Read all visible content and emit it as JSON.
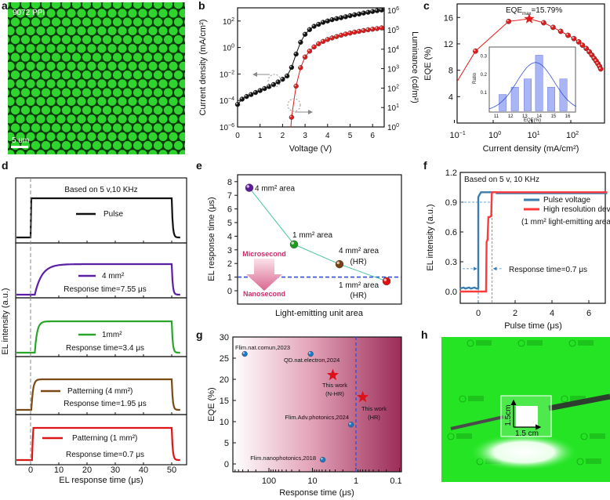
{
  "panel_labels": {
    "a": "a",
    "b": "b",
    "c": "c",
    "d": "d",
    "e": "e",
    "f": "f",
    "g": "g",
    "h": "h"
  },
  "panel_a": {
    "ppi_label": "9072 PPI",
    "scale_label": "5 um"
  },
  "panel_h": {
    "width_label": "1.5 cm",
    "height_label": "1.5cm"
  },
  "chart_data": [
    {
      "panel": "b",
      "type": "line",
      "xlabel": "Voltage (V)",
      "ylabel": "Current density (mA/cm²)",
      "y2label": "Luminance (cd/m²)",
      "xlim": [
        0,
        6.5
      ],
      "xticks": [
        0,
        1,
        2,
        3,
        4,
        5,
        6
      ],
      "ylim_log10": [
        -6,
        3
      ],
      "yticks_log10": [
        -6,
        -4,
        -2,
        0,
        2
      ],
      "y2lim_log10": [
        0,
        6.1
      ],
      "y2ticks_log10": [
        0,
        1,
        2,
        3,
        4,
        5,
        6
      ],
      "series": [
        {
          "name": "Current density",
          "axis": "left",
          "color": "#111111",
          "x": [
            0,
            0.2,
            0.4,
            0.6,
            0.8,
            1.0,
            1.2,
            1.4,
            1.6,
            1.8,
            2.0,
            2.2,
            2.4,
            2.6,
            2.8,
            3.0,
            3.2,
            3.4,
            3.6,
            3.8,
            4.0,
            4.2,
            4.4,
            4.6,
            4.8,
            5.0,
            5.2,
            5.4,
            5.6,
            5.8,
            6.0,
            6.2,
            6.4
          ],
          "log10_y": [
            -4.3,
            -3.9,
            -3.7,
            -3.55,
            -3.4,
            -3.25,
            -3.1,
            -2.95,
            -2.8,
            -2.6,
            -2.4,
            -2.15,
            -1.5,
            -0.5,
            0.4,
            1.0,
            1.35,
            1.6,
            1.75,
            1.9,
            2.0,
            2.1,
            2.18,
            2.25,
            2.32,
            2.4,
            2.47,
            2.53,
            2.6,
            2.66,
            2.72,
            2.78,
            2.83
          ]
        },
        {
          "name": "Luminance",
          "axis": "right",
          "color": "#e01b1b",
          "x": [
            2.4,
            2.6,
            2.8,
            3.0,
            3.2,
            3.4,
            3.6,
            3.8,
            4.0,
            4.2,
            4.4,
            4.6,
            4.8,
            5.0,
            5.2,
            5.4,
            5.6,
            5.8,
            6.0,
            6.2,
            6.4
          ],
          "log10_y": [
            0.5,
            2.1,
            3.05,
            3.6,
            3.9,
            4.12,
            4.28,
            4.4,
            4.5,
            4.58,
            4.65,
            4.72,
            4.78,
            4.83,
            4.88,
            4.92,
            4.96,
            5.0,
            5.03,
            5.06,
            5.1
          ]
        }
      ]
    },
    {
      "panel": "c",
      "type": "line",
      "xlabel": "Current density (mA/cm²)",
      "ylabel": "EQE (%)",
      "xlim_log10": [
        -1,
        2.8
      ],
      "xticks_log10": [
        -1,
        0,
        1,
        2
      ],
      "ylim": [
        0,
        18
      ],
      "yticks": [
        4,
        8,
        12,
        16
      ],
      "annotation": {
        "text": "EQE",
        "sub": "max",
        "value": "=15.79%",
        "x": 8.5,
        "y": 15.79
      },
      "series": [
        {
          "name": "EQE",
          "color": "#e01b1b",
          "x": [
            0.35,
            2.5,
            8.5,
            20,
            35,
            55,
            85,
            120,
            160,
            200,
            250,
            300,
            350,
            400,
            450,
            500,
            550,
            590
          ],
          "y": [
            10.9,
            15.4,
            15.79,
            15.2,
            14.5,
            13.9,
            13.3,
            12.8,
            12.3,
            11.8,
            11.3,
            10.8,
            10.3,
            9.8,
            9.4,
            9.0,
            8.6,
            8.2
          ],
          "line_start": {
            "x": 0.1,
            "y": 6.3
          }
        }
      ],
      "inset": {
        "type": "bar",
        "xlabel": "EQE(%)",
        "ylabel": "Ratio",
        "xticks": [
          11,
          12,
          13,
          14,
          15,
          16
        ],
        "yticks": [
          0.1,
          0.2,
          0.3
        ],
        "bins": [
          11.45,
          12.3,
          13.2,
          14.0,
          14.85,
          15.7
        ],
        "values": [
          0.09,
          0.13,
          0.175,
          0.305,
          0.13,
          0.175
        ],
        "fit": {
          "type": "gaussian",
          "mean": 13.75,
          "sd": 1.3,
          "peak": 0.265,
          "color": "#3552d8"
        },
        "bar_color": "#a9b5f4"
      }
    },
    {
      "panel": "d",
      "type": "line",
      "xlabel": "EL response time (μs)",
      "ylabel": "EL intensity (a.u.)",
      "xlim": [
        -5,
        55
      ],
      "xticks": [
        0,
        10,
        20,
        30,
        40,
        50
      ],
      "note": "Based on 5 v,10 KHz",
      "traces": [
        {
          "label": "Pulse",
          "response": "",
          "color": "#111111",
          "onset_us": 0,
          "tau_us": 0.02
        },
        {
          "label": "4 mm²",
          "response": "Response time=7.55 μs",
          "color": "#5b1fa6",
          "onset_us": 1.5,
          "tau_us": 2.5
        },
        {
          "label": "1mm²",
          "response": "Response time=3.4 μs",
          "color": "#2aa52a",
          "onset_us": 1.5,
          "tau_us": 0.8
        },
        {
          "label": "Patterning (4 mm²)",
          "response": "Response time=1.95 μs",
          "color": "#7a4a14",
          "onset_us": 0.3,
          "tau_us": 0.55
        },
        {
          "label": "Patterning (1 mm²)",
          "response": "Response time=0.7 μs",
          "color": "#dd1515",
          "onset_us": 0.7,
          "tau_us": 0.05
        }
      ]
    },
    {
      "panel": "e",
      "type": "scatter",
      "xlabel": "Light-emitting unit area",
      "ylabel": "EL response time (μs)",
      "ylim": [
        -1,
        8.5
      ],
      "yticks": [
        0,
        1,
        2,
        3,
        4,
        5,
        6,
        7,
        8
      ],
      "threshold": 1,
      "upper_label": "Microsecond",
      "lower_label": "Nanosecond",
      "points": [
        {
          "label": "4 mm² area",
          "sub": "",
          "value": 7.55,
          "color": "#5a1a9a"
        },
        {
          "label": "1 mm² area",
          "sub": "",
          "value": 3.4,
          "color": "#1f9a1f"
        },
        {
          "label": "4 mm² area",
          "sub": "(HR)",
          "value": 1.95,
          "color": "#7a4214"
        },
        {
          "label": "1 mm² area",
          "sub": "(HR)",
          "value": 0.7,
          "color": "#e01010"
        }
      ]
    },
    {
      "panel": "f",
      "type": "line",
      "xlabel": "Pulse time (μs)",
      "ylabel": "EL intensity (a.u.)",
      "xlim": [
        -1,
        7
      ],
      "xticks": [
        0,
        2,
        4,
        6
      ],
      "ylim": [
        -0.13,
        1.2
      ],
      "yticks": [
        0.0,
        0.3,
        0.6,
        0.9,
        1.2
      ],
      "note": "Based on 5 v, 10 KHz",
      "legend_extra": "(1 mm² light-emitting area)",
      "annotation": "Response time=0.7 μs",
      "series": [
        {
          "name": "Pulse voltage",
          "color": "#3a7db0",
          "x": [
            -1,
            -0.8,
            -0.7,
            -0.5,
            -0.4,
            -0.2,
            -0.1,
            0,
            0,
            0.05,
            0.15,
            1.0,
            1.0,
            7
          ],
          "y": [
            0.03,
            0.04,
            0.03,
            0.04,
            0.03,
            0.04,
            0.03,
            0.03,
            0.95,
            0.97,
            1.0,
            1.0,
            0.99,
            0.99
          ]
        },
        {
          "name": "High resolution device",
          "color": "#ff3a3a",
          "x": [
            -1,
            0.42,
            0.45,
            0.5,
            0.55,
            0.6,
            0.7,
            0.73,
            0.75,
            7
          ],
          "y": [
            0,
            0,
            0.5,
            0.52,
            0.75,
            0.75,
            0.76,
            0.98,
            1.0,
            1.0
          ]
        }
      ]
    },
    {
      "panel": "g",
      "type": "scatter",
      "xlabel": "Response time (μs)",
      "ylabel": "EQE (%)",
      "xscale": "log-reversed",
      "xlim": [
        700,
        0.1
      ],
      "xticks": [
        100,
        10,
        1,
        0.1
      ],
      "ylim": [
        -2,
        30
      ],
      "yticks": [
        0,
        5,
        10,
        15,
        20,
        25,
        30
      ],
      "threshold_x": 1,
      "points": [
        {
          "label": "Flim.nat.comun,2023",
          "sub": "",
          "x": 360,
          "y": 26,
          "marker": "ball"
        },
        {
          "label": "QD.nat.electron,2024",
          "sub": "",
          "x": 11,
          "y": 26,
          "marker": "ball"
        },
        {
          "label": "This work",
          "sub": "(N-HR)",
          "x": 3.4,
          "y": 21,
          "marker": "star"
        },
        {
          "label": "This work",
          "sub": "(HR)",
          "x": 0.7,
          "y": 15.8,
          "marker": "star"
        },
        {
          "label": "Flim.Adv.photonics,2024",
          "sub": "",
          "x": 1.3,
          "y": 9.3,
          "marker": "ball"
        },
        {
          "label": "Flim.nanophotonics,2018",
          "sub": "",
          "x": 5.8,
          "y": 1,
          "marker": "ball"
        }
      ]
    }
  ]
}
